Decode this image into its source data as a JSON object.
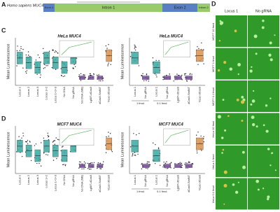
{
  "panel_a": {
    "label": "A",
    "gene": "Homo sapiens MUC4",
    "regions": [
      "Exon 1",
      "Intron 1",
      "Exon 2",
      "Intron 2"
    ]
  },
  "panel_c": {
    "label": "C",
    "y_label": "Mean Luminescence",
    "left": {
      "title": "HeLa MUC4",
      "categories": [
        "Locus 1",
        "Locus 2",
        "Locus 3",
        "Locus 1+2",
        "Locus 1+2+3",
        "No DNA",
        "No gRNA",
        "No DNA (MB)",
        "LgBiT-dCas9",
        "dCas9-SmBiT",
        "NLuc-dCas9"
      ]
    },
    "right": {
      "title": "HeLa MUC4",
      "categories": [
        "Locus 1",
        "No gRNA",
        "Locus 1",
        "No gRNA",
        "LgBiT-dCas9",
        "dCas9-SmBiT",
        "NLuc-dCas9"
      ],
      "groups": [
        "1 fmol",
        "0.1 fmol"
      ]
    }
  },
  "panel_d": {
    "label": "D",
    "y_label": "Mean Luminescence",
    "left": {
      "title": "MCF7 MUC4",
      "categories": [
        "Locus 1",
        "Locus 2",
        "Locus 3",
        "Locus 1+2",
        "Locus 1+2+3",
        "No DNA",
        "No gRNA",
        "No DNA (MB)",
        "LgBiT-dCas9",
        "dCas9-SmBiT",
        "NLuc-dCas9"
      ]
    },
    "right": {
      "title": "MCF7 MUC4",
      "categories": [
        "Locus 1",
        "No gRNA",
        "Locus 1",
        "No gRNA",
        "LgBiT-dCas9",
        "dCas9-SmBiT",
        "NLuc-dCas9"
      ],
      "groups": [
        "1 fmol",
        "0.1 fmol"
      ]
    }
  },
  "panel_e": {
    "label": "D",
    "columns": [
      "Locus 1",
      "No gRNA"
    ],
    "rows": [
      "MCF7 10 fmol",
      "MCF7 1 fmol",
      "MCF7 0.1 fmol",
      "HeLa 10 fmol",
      "HeLa 1 fmol",
      "HeLa 0.1 fmol"
    ]
  }
}
